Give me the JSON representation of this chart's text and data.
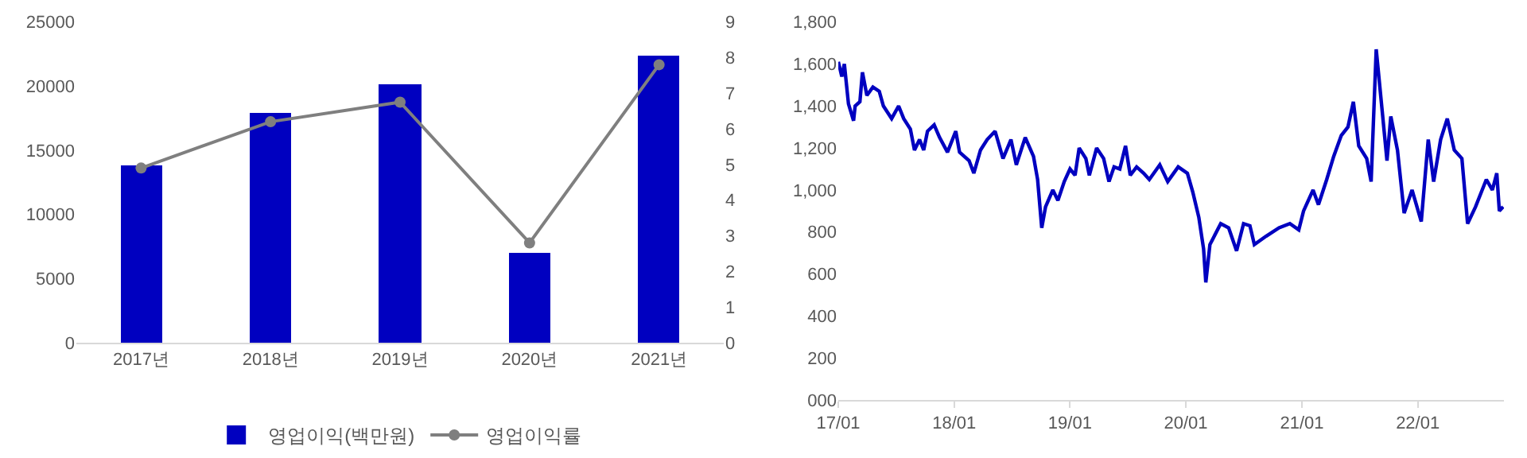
{
  "chart_data": [
    {
      "type": "bar",
      "categories": [
        "2017년",
        "2018년",
        "2019년",
        "2020년",
        "2021년"
      ],
      "legend": "bottom",
      "grid": false,
      "ylim": [
        0,
        25000
      ],
      "yticks": [
        0,
        5000,
        10000,
        15000,
        20000,
        25000
      ],
      "y2lim": [
        0,
        9
      ],
      "y2ticks": [
        0,
        1,
        2,
        3,
        4,
        5,
        6,
        7,
        8,
        9
      ],
      "series": [
        {
          "name": "영업이익(백만원)",
          "type": "bar",
          "color": "#0000c0",
          "values": [
            13900,
            17900,
            20200,
            7050,
            22400
          ]
        },
        {
          "name": "영업이익률",
          "type": "line",
          "axis": "y2",
          "color": "#7f7f7f",
          "marker": "circle",
          "values": [
            4.9,
            6.2,
            6.75,
            2.8,
            7.8
          ]
        }
      ]
    },
    {
      "type": "line",
      "legend": false,
      "grid": false,
      "marker": "none",
      "xlim": [
        "2017-01-01",
        "2022-09-30"
      ],
      "xticks": [
        {
          "value": "2017-01-01",
          "label": "17/01"
        },
        {
          "value": "2018-01-01",
          "label": "18/01"
        },
        {
          "value": "2019-01-01",
          "label": "19/01"
        },
        {
          "value": "2020-01-01",
          "label": "20/01"
        },
        {
          "value": "2021-01-01",
          "label": "21/01"
        },
        {
          "value": "2022-01-01",
          "label": "22/01"
        }
      ],
      "ylim": [
        0,
        1800
      ],
      "yticks": [
        {
          "value": 0,
          "label": "000"
        },
        {
          "value": 200,
          "label": "200"
        },
        {
          "value": 400,
          "label": "400"
        },
        {
          "value": 600,
          "label": "600"
        },
        {
          "value": 800,
          "label": "800"
        },
        {
          "value": 1000,
          "label": "1,000"
        },
        {
          "value": 1200,
          "label": "1,200"
        },
        {
          "value": 1400,
          "label": "1,400"
        },
        {
          "value": 1600,
          "label": "1,600"
        },
        {
          "value": 1800,
          "label": "1,800"
        }
      ],
      "series": [
        {
          "color": "#0000c0",
          "x": [
            "2017-01-01",
            "2017-01-12",
            "2017-01-20",
            "2017-02-02",
            "2017-02-18",
            "2017-02-23",
            "2017-03-10",
            "2017-03-18",
            "2017-04-01",
            "2017-04-20",
            "2017-05-10",
            "2017-05-23",
            "2017-06-18",
            "2017-07-10",
            "2017-07-26",
            "2017-08-16",
            "2017-08-29",
            "2017-09-14",
            "2017-09-27",
            "2017-10-09",
            "2017-10-30",
            "2017-11-16",
            "2017-12-11",
            "2018-01-06",
            "2018-01-18",
            "2018-02-17",
            "2018-03-04",
            "2018-03-25",
            "2018-04-15",
            "2018-05-10",
            "2018-06-04",
            "2018-06-29",
            "2018-07-16",
            "2018-08-13",
            "2018-09-08",
            "2018-09-21",
            "2018-10-04",
            "2018-10-16",
            "2018-11-08",
            "2018-11-24",
            "2018-12-14",
            "2019-01-01",
            "2019-01-17",
            "2019-01-30",
            "2019-02-20",
            "2019-03-03",
            "2019-03-26",
            "2019-04-17",
            "2019-05-04",
            "2019-05-20",
            "2019-06-07",
            "2019-06-25",
            "2019-07-10",
            "2019-07-30",
            "2019-08-21",
            "2019-09-08",
            "2019-10-11",
            "2019-11-05",
            "2019-12-08",
            "2020-01-06",
            "2020-01-23",
            "2020-02-11",
            "2020-02-26",
            "2020-03-04",
            "2020-03-17",
            "2020-04-20",
            "2020-05-15",
            "2020-06-09",
            "2020-07-01",
            "2020-07-21",
            "2020-08-04",
            "2020-09-10",
            "2020-10-21",
            "2020-11-24",
            "2020-12-22",
            "2021-01-06",
            "2021-02-05",
            "2021-02-22",
            "2021-03-20",
            "2021-04-11",
            "2021-05-05",
            "2021-05-26",
            "2021-06-12",
            "2021-06-29",
            "2021-07-24",
            "2021-08-07",
            "2021-08-23",
            "2021-09-10",
            "2021-09-26",
            "2021-10-08",
            "2021-10-29",
            "2021-11-19",
            "2021-12-14",
            "2022-01-12",
            "2022-02-03",
            "2022-02-20",
            "2022-03-14",
            "2022-04-04",
            "2022-04-26",
            "2022-05-20",
            "2022-06-07",
            "2022-07-02",
            "2022-08-05",
            "2022-08-24",
            "2022-09-07",
            "2022-09-15",
            "2022-09-27"
          ],
          "values": [
            1610,
            1540,
            1600,
            1410,
            1330,
            1400,
            1420,
            1560,
            1450,
            1490,
            1470,
            1400,
            1340,
            1400,
            1340,
            1290,
            1190,
            1240,
            1190,
            1280,
            1310,
            1250,
            1180,
            1280,
            1180,
            1140,
            1080,
            1190,
            1240,
            1280,
            1150,
            1240,
            1120,
            1250,
            1160,
            1050,
            820,
            920,
            1000,
            950,
            1040,
            1100,
            1070,
            1200,
            1150,
            1070,
            1200,
            1150,
            1040,
            1110,
            1100,
            1210,
            1070,
            1110,
            1080,
            1050,
            1120,
            1040,
            1110,
            1080,
            990,
            870,
            720,
            560,
            740,
            840,
            820,
            710,
            840,
            830,
            740,
            780,
            820,
            840,
            810,
            900,
            1000,
            930,
            1050,
            1160,
            1260,
            1300,
            1420,
            1210,
            1150,
            1040,
            1670,
            1390,
            1140,
            1350,
            1190,
            890,
            1000,
            850,
            1240,
            1040,
            1240,
            1340,
            1190,
            1150,
            840,
            920,
            1050,
            1000,
            1080,
            900,
            920
          ]
        }
      ]
    }
  ]
}
